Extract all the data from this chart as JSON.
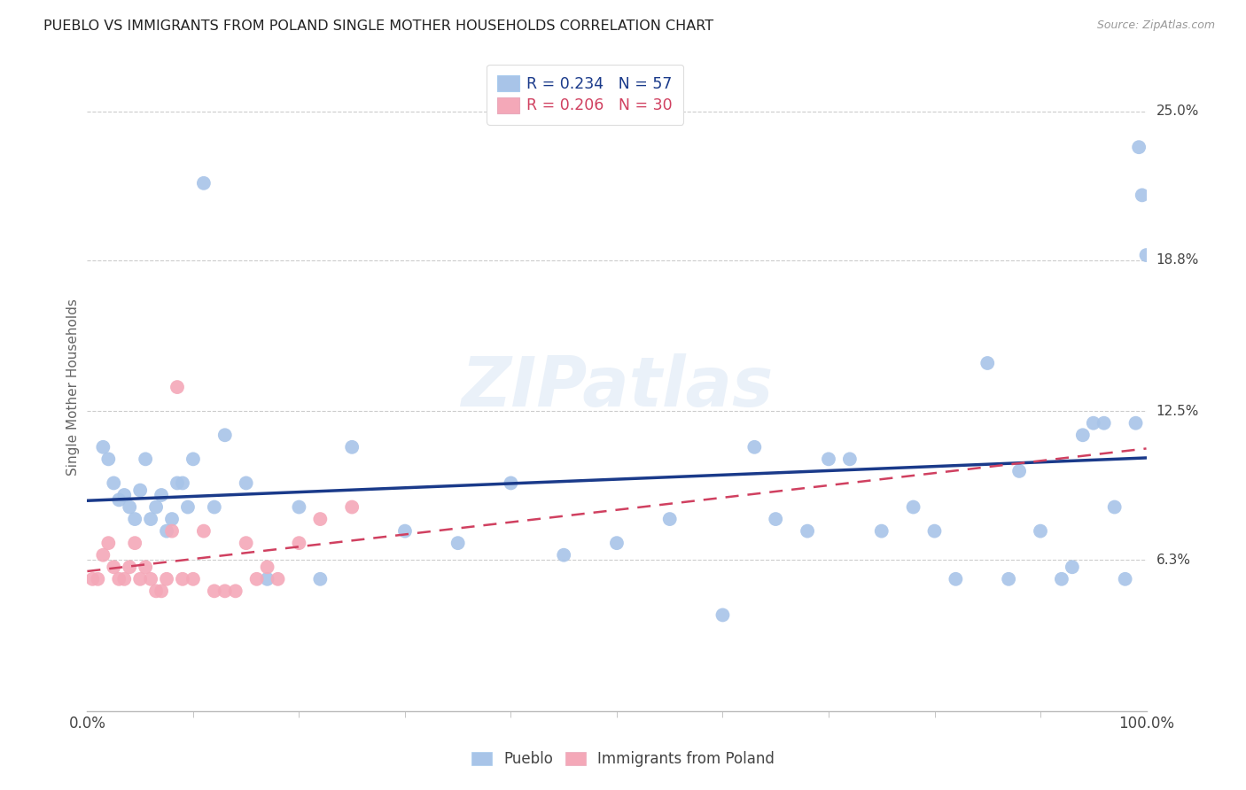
{
  "title": "PUEBLO VS IMMIGRANTS FROM POLAND SINGLE MOTHER HOUSEHOLDS CORRELATION CHART",
  "source": "Source: ZipAtlas.com",
  "ylabel": "Single Mother Households",
  "ytick_labels": [
    "6.3%",
    "12.5%",
    "18.8%",
    "25.0%"
  ],
  "ytick_values": [
    6.3,
    12.5,
    18.8,
    25.0
  ],
  "pueblo_color": "#a8c4e8",
  "poland_color": "#f4a8b8",
  "pueblo_line_color": "#1a3a8a",
  "poland_line_color": "#d04060",
  "watermark_text": "ZIPatlas",
  "legend_blue_label": "R = 0.234   N = 57",
  "legend_pink_label": "R = 0.206   N = 30",
  "pueblo_x": [
    1.5,
    2.0,
    2.5,
    3.0,
    3.5,
    4.0,
    4.5,
    5.0,
    5.5,
    6.0,
    6.5,
    7.0,
    7.5,
    8.0,
    8.5,
    9.0,
    9.5,
    10.0,
    11.0,
    12.0,
    13.0,
    15.0,
    17.0,
    20.0,
    22.0,
    25.0,
    30.0,
    35.0,
    40.0,
    45.0,
    50.0,
    55.0,
    60.0,
    63.0,
    65.0,
    68.0,
    70.0,
    72.0,
    75.0,
    78.0,
    80.0,
    82.0,
    85.0,
    87.0,
    88.0,
    90.0,
    92.0,
    93.0,
    94.0,
    95.0,
    96.0,
    97.0,
    98.0,
    99.0,
    99.3,
    99.6,
    100.0
  ],
  "pueblo_y": [
    11.0,
    10.5,
    9.5,
    8.8,
    9.0,
    8.5,
    8.0,
    9.2,
    10.5,
    8.0,
    8.5,
    9.0,
    7.5,
    8.0,
    9.5,
    9.5,
    8.5,
    10.5,
    22.0,
    8.5,
    11.5,
    9.5,
    5.5,
    8.5,
    5.5,
    11.0,
    7.5,
    7.0,
    9.5,
    6.5,
    7.0,
    8.0,
    4.0,
    11.0,
    8.0,
    7.5,
    10.5,
    10.5,
    7.5,
    8.5,
    7.5,
    5.5,
    14.5,
    5.5,
    10.0,
    7.5,
    5.5,
    6.0,
    11.5,
    12.0,
    12.0,
    8.5,
    5.5,
    12.0,
    23.5,
    21.5,
    19.0
  ],
  "poland_x": [
    0.5,
    1.0,
    1.5,
    2.0,
    2.5,
    3.0,
    3.5,
    4.0,
    4.5,
    5.0,
    5.5,
    6.0,
    6.5,
    7.0,
    7.5,
    8.0,
    8.5,
    9.0,
    10.0,
    11.0,
    12.0,
    13.0,
    14.0,
    15.0,
    16.0,
    17.0,
    18.0,
    20.0,
    22.0,
    25.0
  ],
  "poland_y": [
    5.5,
    5.5,
    6.5,
    7.0,
    6.0,
    5.5,
    5.5,
    6.0,
    7.0,
    5.5,
    6.0,
    5.5,
    5.0,
    5.0,
    5.5,
    7.5,
    13.5,
    5.5,
    5.5,
    7.5,
    5.0,
    5.0,
    5.0,
    7.0,
    5.5,
    6.0,
    5.5,
    7.0,
    8.0,
    8.5
  ],
  "xlim": [
    0,
    100
  ],
  "ylim": [
    0,
    27
  ],
  "background_color": "#ffffff",
  "grid_color": "#cccccc",
  "spine_color": "#bbbbbb"
}
